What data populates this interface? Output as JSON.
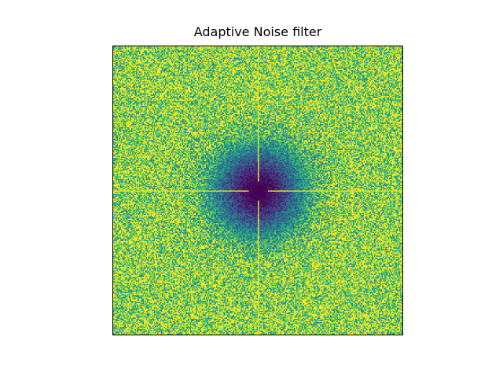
{
  "chart_data": {
    "type": "heatmap",
    "title": "Adaptive Noise filter",
    "xlabel": "",
    "ylabel": "",
    "axes_visible": false,
    "colormap": "viridis",
    "grid": false,
    "description_of_values": {
      "center": [
        0.5,
        0.5
      ],
      "center_value": 0.0,
      "edge_value": 1.0,
      "noise_level": 0.35,
      "cross_lines_through_center": true,
      "cross_line_value": 1.0
    }
  },
  "colors": {
    "background": "#ffffff",
    "frame": "#000000",
    "viridis_low": "#440154",
    "viridis_mid": "#21918c",
    "viridis_high": "#fde725"
  }
}
